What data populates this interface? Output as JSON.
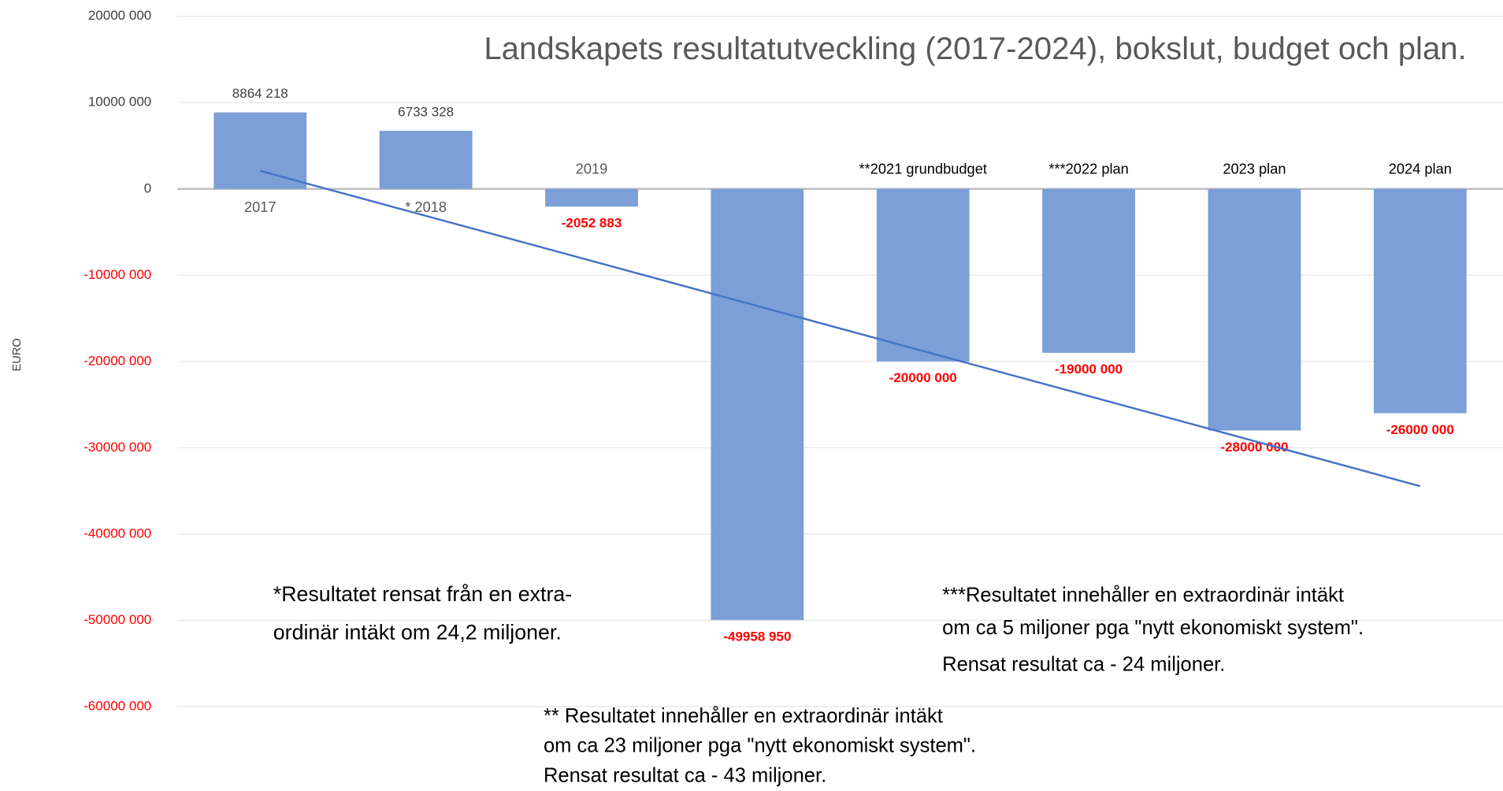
{
  "chart_data": {
    "type": "bar",
    "title": "Landskapets resultatutveckling (2017-2024), bokslut, budget och plan.",
    "y_label": "EURO",
    "categories": [
      "2017",
      "* 2018",
      "2019",
      null,
      "**2021 grundbudget",
      "***2022 plan",
      "2023 plan",
      "2024 plan"
    ],
    "values": [
      8864218,
      6733328,
      -2052883,
      -49958950,
      -20000000,
      -19000000,
      -28000000,
      -26000000
    ],
    "value_labels": [
      "8864 218",
      "6733 328",
      "-2052 883",
      "-49958 950",
      "-20000 000",
      "-19000 000",
      "-28000 000",
      "-26000 000"
    ],
    "color": "#7b9fd6",
    "negative_label_color": "#ff0000",
    "trendline": true,
    "trendline_color": "#4472c4",
    "ylim": [
      -60000000,
      20000000
    ],
    "yticks": [
      {
        "value": 20000000,
        "label": "20000 000"
      },
      {
        "value": 10000000,
        "label": "10000 000"
      },
      0,
      {
        "value": -10000000,
        "label": "-10000 000"
      },
      {
        "value": -20000000,
        "label": "-20000 000"
      },
      {
        "value": -30000000,
        "label": "-30000 000"
      },
      {
        "value": -40000000,
        "label": "-40000 000"
      },
      {
        "value": -50000000,
        "label": "-50000 000"
      },
      {
        "value": -60000000,
        "label": "-60000 000"
      }
    ],
    "grid": true,
    "annotations": [
      [
        "*Resultatet rensat från en extra-",
        "ordinär intäkt om 24,2 miljoner."
      ],
      [
        "** Resultatet innehåller en extraordinär intäkt",
        "om ca 23 miljoner pga \"nytt ekonomiskt system\".",
        "Rensat resultat ca - 43 miljoner."
      ],
      [
        "***Resultatet innehåller en extraordinär intäkt",
        "om ca 5 miljoner pga \"nytt ekonomiskt system\".",
        "Rensat resultat ca - 24 miljoner."
      ]
    ]
  }
}
